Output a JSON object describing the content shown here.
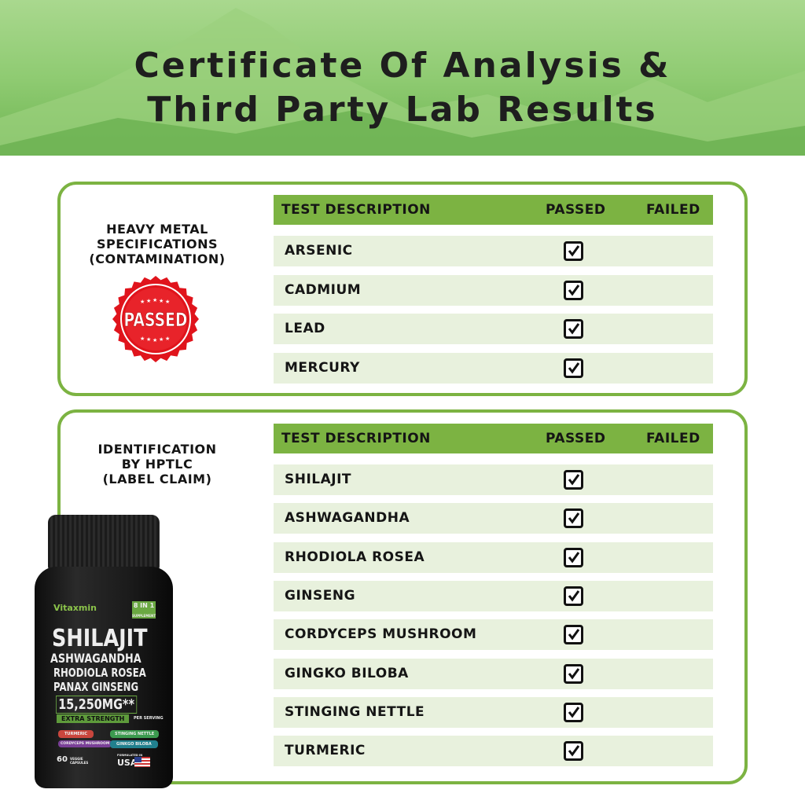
{
  "header": {
    "title_line1": "Certificate Of Analysis &",
    "title_line2": "Third Party Lab Results"
  },
  "colors": {
    "accent": "#7cb342",
    "row_bg": "#e8f1dd",
    "stamp": "#e0141c"
  },
  "columns": {
    "description": "TEST DESCRIPTION",
    "passed": "PASSED",
    "failed": "FAILED"
  },
  "heavy_metals": {
    "label": [
      "HEAVY METAL",
      "SPECIFICATIONS",
      "(CONTAMINATION)"
    ],
    "stamp": "PASSED",
    "rows": [
      {
        "name": "ARSENIC",
        "result": "passed"
      },
      {
        "name": "CADMIUM",
        "result": "passed"
      },
      {
        "name": "LEAD",
        "result": "passed"
      },
      {
        "name": "MERCURY",
        "result": "passed"
      }
    ]
  },
  "identification": {
    "label": [
      "IDENTIFICATION",
      "BY HPTLC",
      "(LABEL CLAIM)"
    ],
    "rows": [
      {
        "name": "SHILAJIT",
        "result": "passed"
      },
      {
        "name": "ASHWAGANDHA",
        "result": "passed"
      },
      {
        "name": "RHODIOLA ROSEA",
        "result": "passed"
      },
      {
        "name": "GINSENG",
        "result": "passed"
      },
      {
        "name": "CORDYCEPS MUSHROOM",
        "result": "passed"
      },
      {
        "name": "GINGKO BILOBA",
        "result": "passed"
      },
      {
        "name": "STINGING NETTLE",
        "result": "passed"
      },
      {
        "name": "TURMERIC",
        "result": "passed"
      }
    ]
  },
  "product": {
    "brand": "Vitaxmin",
    "badge": "8 IN 1",
    "badge_sub": "SUPPLEMENT",
    "lines": [
      "SHILAJIT",
      "ASHWAGANDHA",
      "RHODIOLA ROSEA",
      "PANAX GINSENG"
    ],
    "dose": "15,250MG**",
    "strength": "EXTRA STRENGTH",
    "per": "PER SERVING",
    "tags": [
      "TURMERIC",
      "STINGING NETTLE",
      "CORDYCEPS MUSHROOM",
      "GINKGO BILOBA"
    ],
    "count": "60",
    "count_label": "VEGGIE CAPSULES",
    "origin_label": "FORMULATED IN",
    "origin": "USA"
  }
}
